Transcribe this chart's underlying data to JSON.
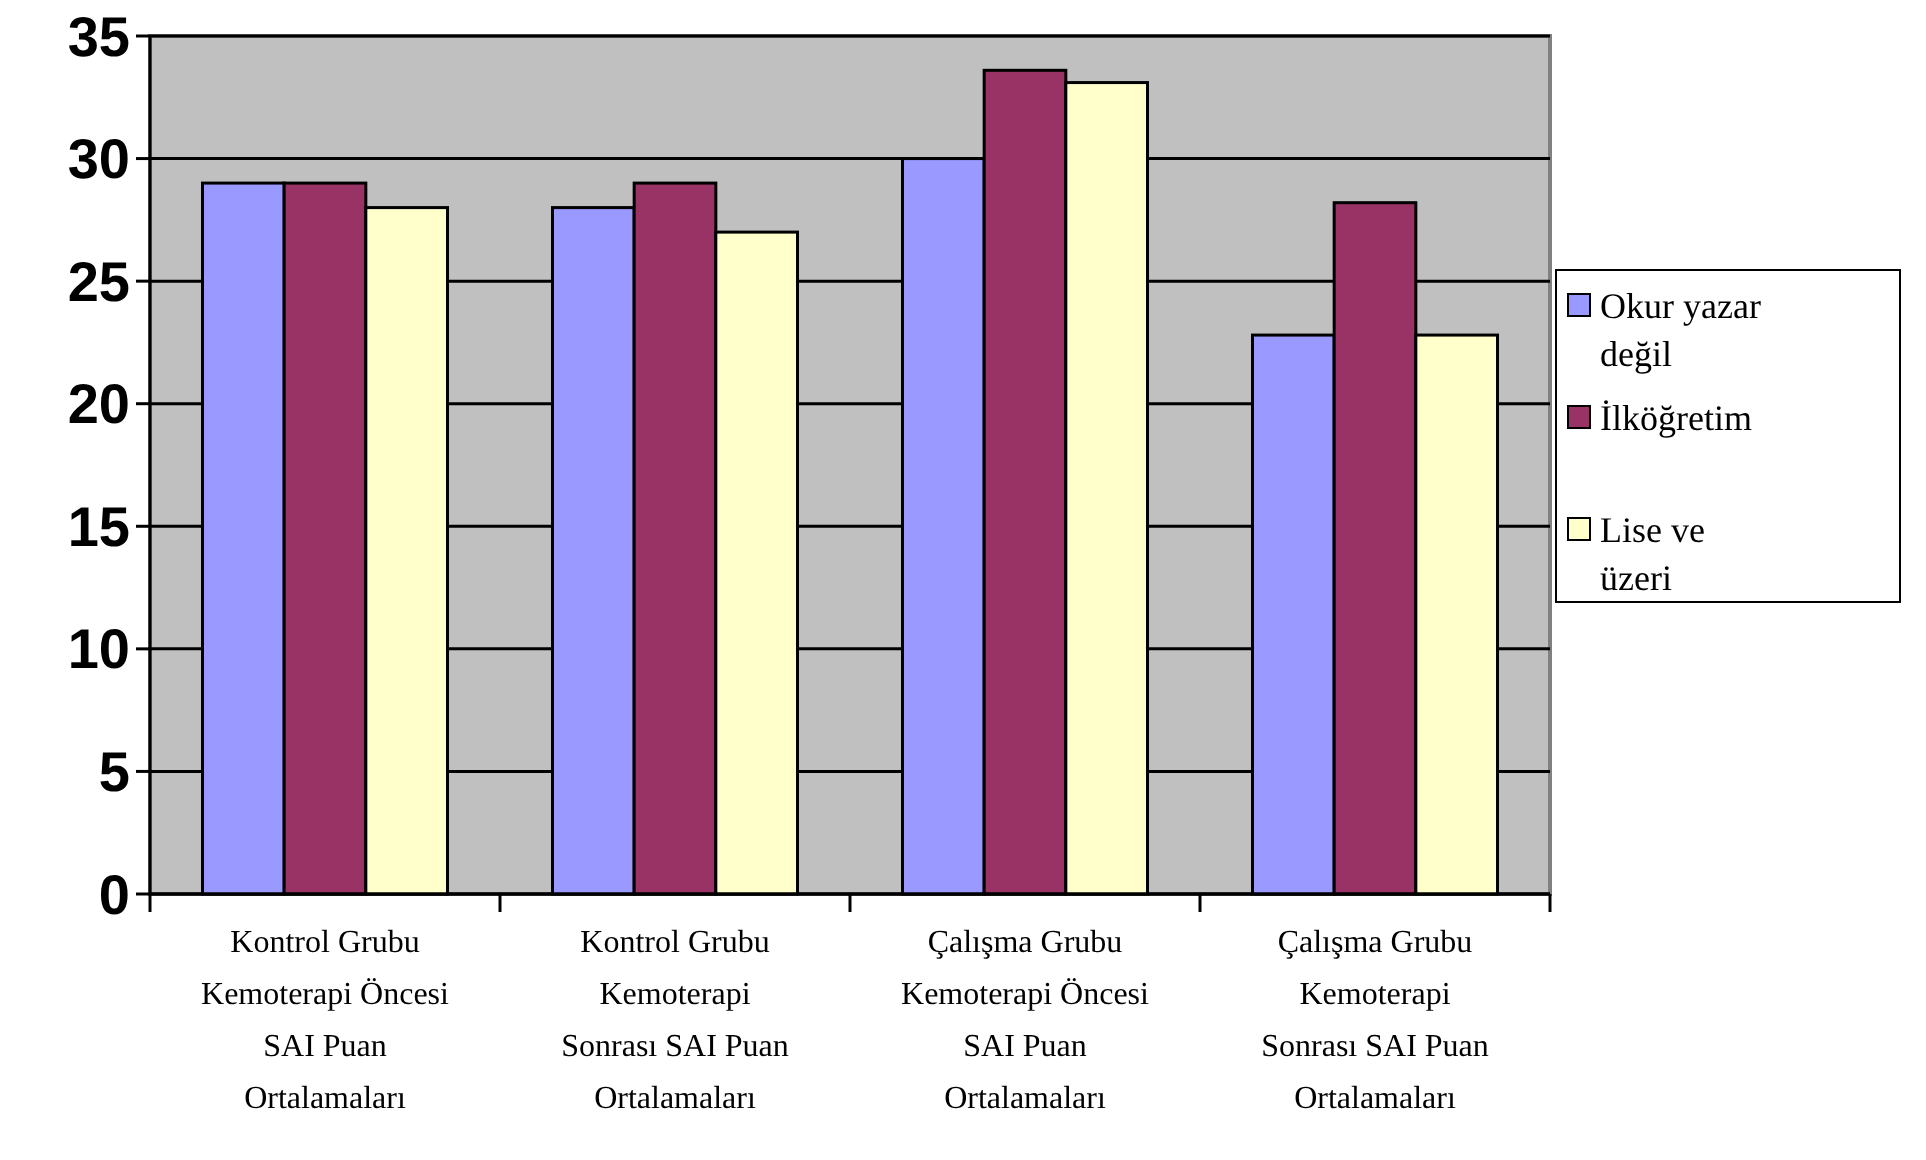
{
  "chart_data": {
    "type": "bar",
    "categories": [
      "Kontrol Grubu Kemoterapi Öncesi SAI Puan Ortalamaları",
      "Kontrol Grubu Kemoterapi Sonrası SAI Puan Ortalamaları",
      "Çalışma Grubu Kemoterapi Öncesi SAI Puan Ortalamaları",
      "Çalışma Grubu Kemoterapi Sonrası SAI Puan Ortalamaları"
    ],
    "series": [
      {
        "name": "Okur yazar değil",
        "color": "#9999ff",
        "values": [
          29,
          28,
          30,
          22.8
        ]
      },
      {
        "name": "İlköğretim",
        "color": "#993366",
        "values": [
          29,
          29,
          33.6,
          28.2
        ]
      },
      {
        "name": "Lise ve üzeri",
        "color": "#ffffcc",
        "values": [
          28,
          27,
          33.1,
          22.8
        ]
      }
    ],
    "ylim": [
      0,
      35
    ],
    "yticks": [
      0,
      5,
      10,
      15,
      20,
      25,
      30,
      35
    ],
    "grid": "y",
    "legend": "right"
  }
}
